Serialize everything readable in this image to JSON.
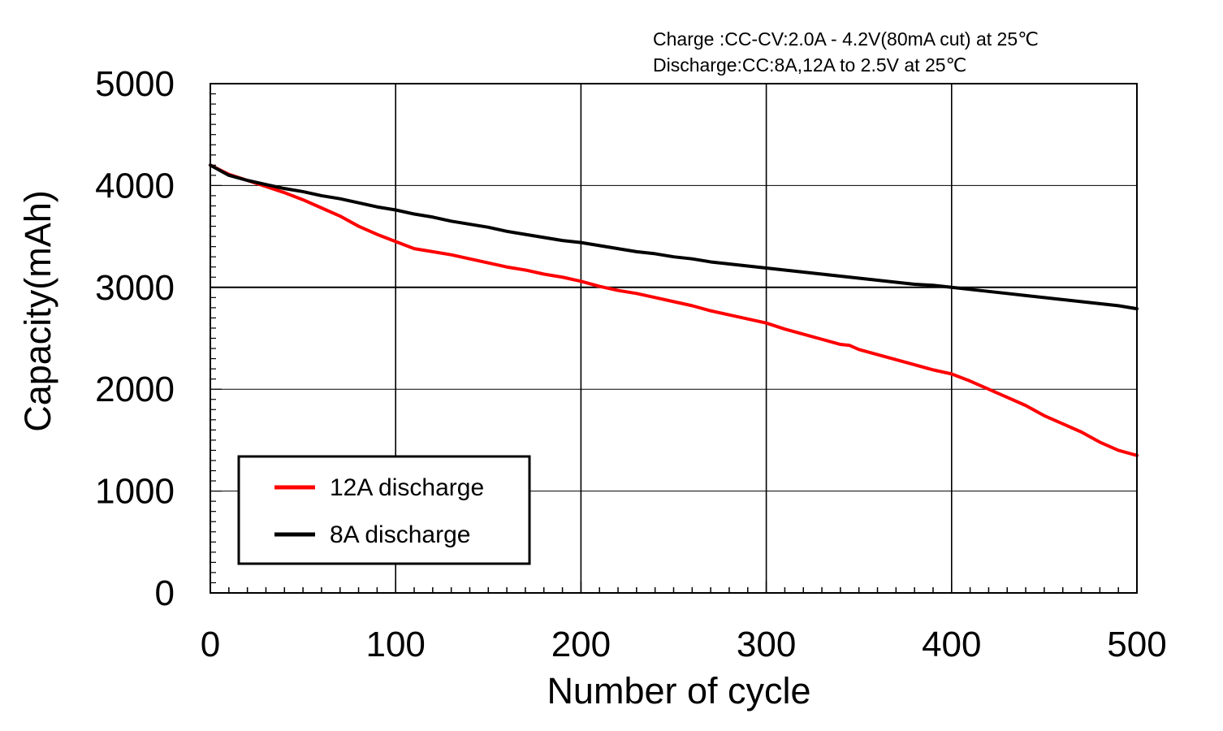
{
  "chart_data": {
    "type": "line",
    "title": "",
    "annotations": [
      "Charge :CC-CV:2.0A - 4.2V(80mA cut) at 25℃",
      "Discharge:CC:8A,12A to 2.5V at 25℃"
    ],
    "xlabel": "Number of cycle",
    "ylabel": "Capacity(mAh)",
    "xlim": [
      0,
      500
    ],
    "ylim": [
      0,
      5000
    ],
    "xticks": [
      0,
      100,
      200,
      300,
      400,
      500
    ],
    "yticks": [
      0,
      1000,
      2000,
      3000,
      4000,
      5000
    ],
    "xtick_labels": [
      "0",
      "100",
      "200",
      "300",
      "400",
      "500"
    ],
    "ytick_labels": [
      "0",
      "1000",
      "2000",
      "3000",
      "4000",
      "5000"
    ],
    "grid": true,
    "legend_position": "bottom-left",
    "series": [
      {
        "name": "12A discharge",
        "color": "#ff0000",
        "x": [
          0,
          10,
          20,
          30,
          40,
          50,
          60,
          70,
          80,
          90,
          100,
          110,
          120,
          130,
          140,
          150,
          160,
          170,
          180,
          190,
          200,
          210,
          220,
          230,
          240,
          250,
          260,
          270,
          280,
          290,
          300,
          310,
          320,
          330,
          340,
          345,
          350,
          360,
          370,
          380,
          390,
          400,
          410,
          420,
          430,
          440,
          450,
          460,
          470,
          480,
          490,
          500
        ],
        "y": [
          4200,
          4110,
          4050,
          3990,
          3930,
          3860,
          3780,
          3700,
          3600,
          3520,
          3450,
          3380,
          3350,
          3320,
          3280,
          3240,
          3200,
          3170,
          3130,
          3100,
          3060,
          3010,
          2970,
          2940,
          2900,
          2860,
          2820,
          2770,
          2730,
          2690,
          2650,
          2590,
          2540,
          2490,
          2440,
          2430,
          2390,
          2340,
          2290,
          2240,
          2190,
          2150,
          2080,
          2000,
          1920,
          1840,
          1740,
          1660,
          1580,
          1480,
          1400,
          1350
        ]
      },
      {
        "name": "8A discharge",
        "color": "#000000",
        "x": [
          0,
          10,
          20,
          30,
          40,
          50,
          60,
          70,
          80,
          90,
          100,
          110,
          120,
          130,
          140,
          150,
          160,
          170,
          180,
          190,
          200,
          210,
          220,
          230,
          240,
          250,
          260,
          270,
          280,
          290,
          300,
          310,
          320,
          330,
          340,
          350,
          360,
          370,
          380,
          390,
          400,
          410,
          420,
          430,
          440,
          450,
          460,
          470,
          480,
          490,
          500
        ],
        "y": [
          4200,
          4100,
          4050,
          4010,
          3970,
          3940,
          3900,
          3870,
          3830,
          3790,
          3760,
          3720,
          3690,
          3650,
          3620,
          3590,
          3550,
          3520,
          3490,
          3460,
          3440,
          3410,
          3380,
          3350,
          3330,
          3300,
          3280,
          3250,
          3230,
          3210,
          3190,
          3170,
          3150,
          3130,
          3110,
          3090,
          3070,
          3050,
          3030,
          3020,
          3000,
          2980,
          2960,
          2940,
          2920,
          2900,
          2880,
          2860,
          2840,
          2820,
          2790
        ]
      }
    ]
  }
}
